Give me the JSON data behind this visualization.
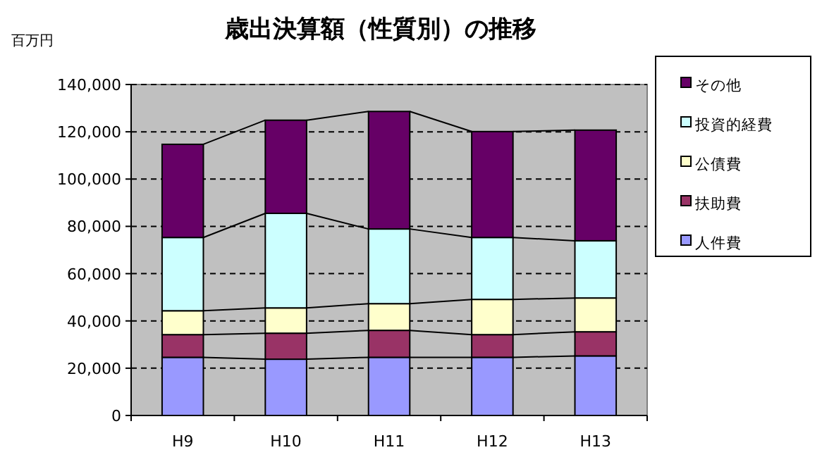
{
  "chart_data": {
    "type": "bar",
    "stacked": true,
    "title": "歳出決算額（性質別）の推移",
    "ylabel": "百万円",
    "categories": [
      "H9",
      "H10",
      "H11",
      "H12",
      "H13"
    ],
    "series": [
      {
        "name": "人件費",
        "color": "#9999ff",
        "values": [
          24600,
          23800,
          24600,
          24600,
          25200
        ]
      },
      {
        "name": "扶助費",
        "color": "#993366",
        "values": [
          9600,
          11000,
          11400,
          9600,
          10200
        ]
      },
      {
        "name": "公債費",
        "color": "#ffffcc",
        "values": [
          10100,
          10700,
          11300,
          14900,
          14300
        ]
      },
      {
        "name": "投資的経費",
        "color": "#ccffff",
        "values": [
          31000,
          40000,
          31600,
          26200,
          24200
        ]
      },
      {
        "name": "その他",
        "color": "#660066",
        "values": [
          39400,
          39400,
          49700,
          44800,
          46800
        ]
      }
    ],
    "ylim": [
      0,
      140000
    ],
    "yticks": [
      0,
      {
        "value": 20000,
        "label": "20,000"
      },
      {
        "value": 40000,
        "label": "40,000"
      },
      {
        "value": 60000,
        "label": "60,000"
      },
      {
        "value": 80000,
        "label": "80,000"
      },
      {
        "value": 100000,
        "label": "100,000"
      },
      {
        "value": 120000,
        "label": "120,000"
      },
      {
        "value": 140000,
        "label": "140,000"
      }
    ],
    "grid": "y",
    "legend": "right"
  }
}
